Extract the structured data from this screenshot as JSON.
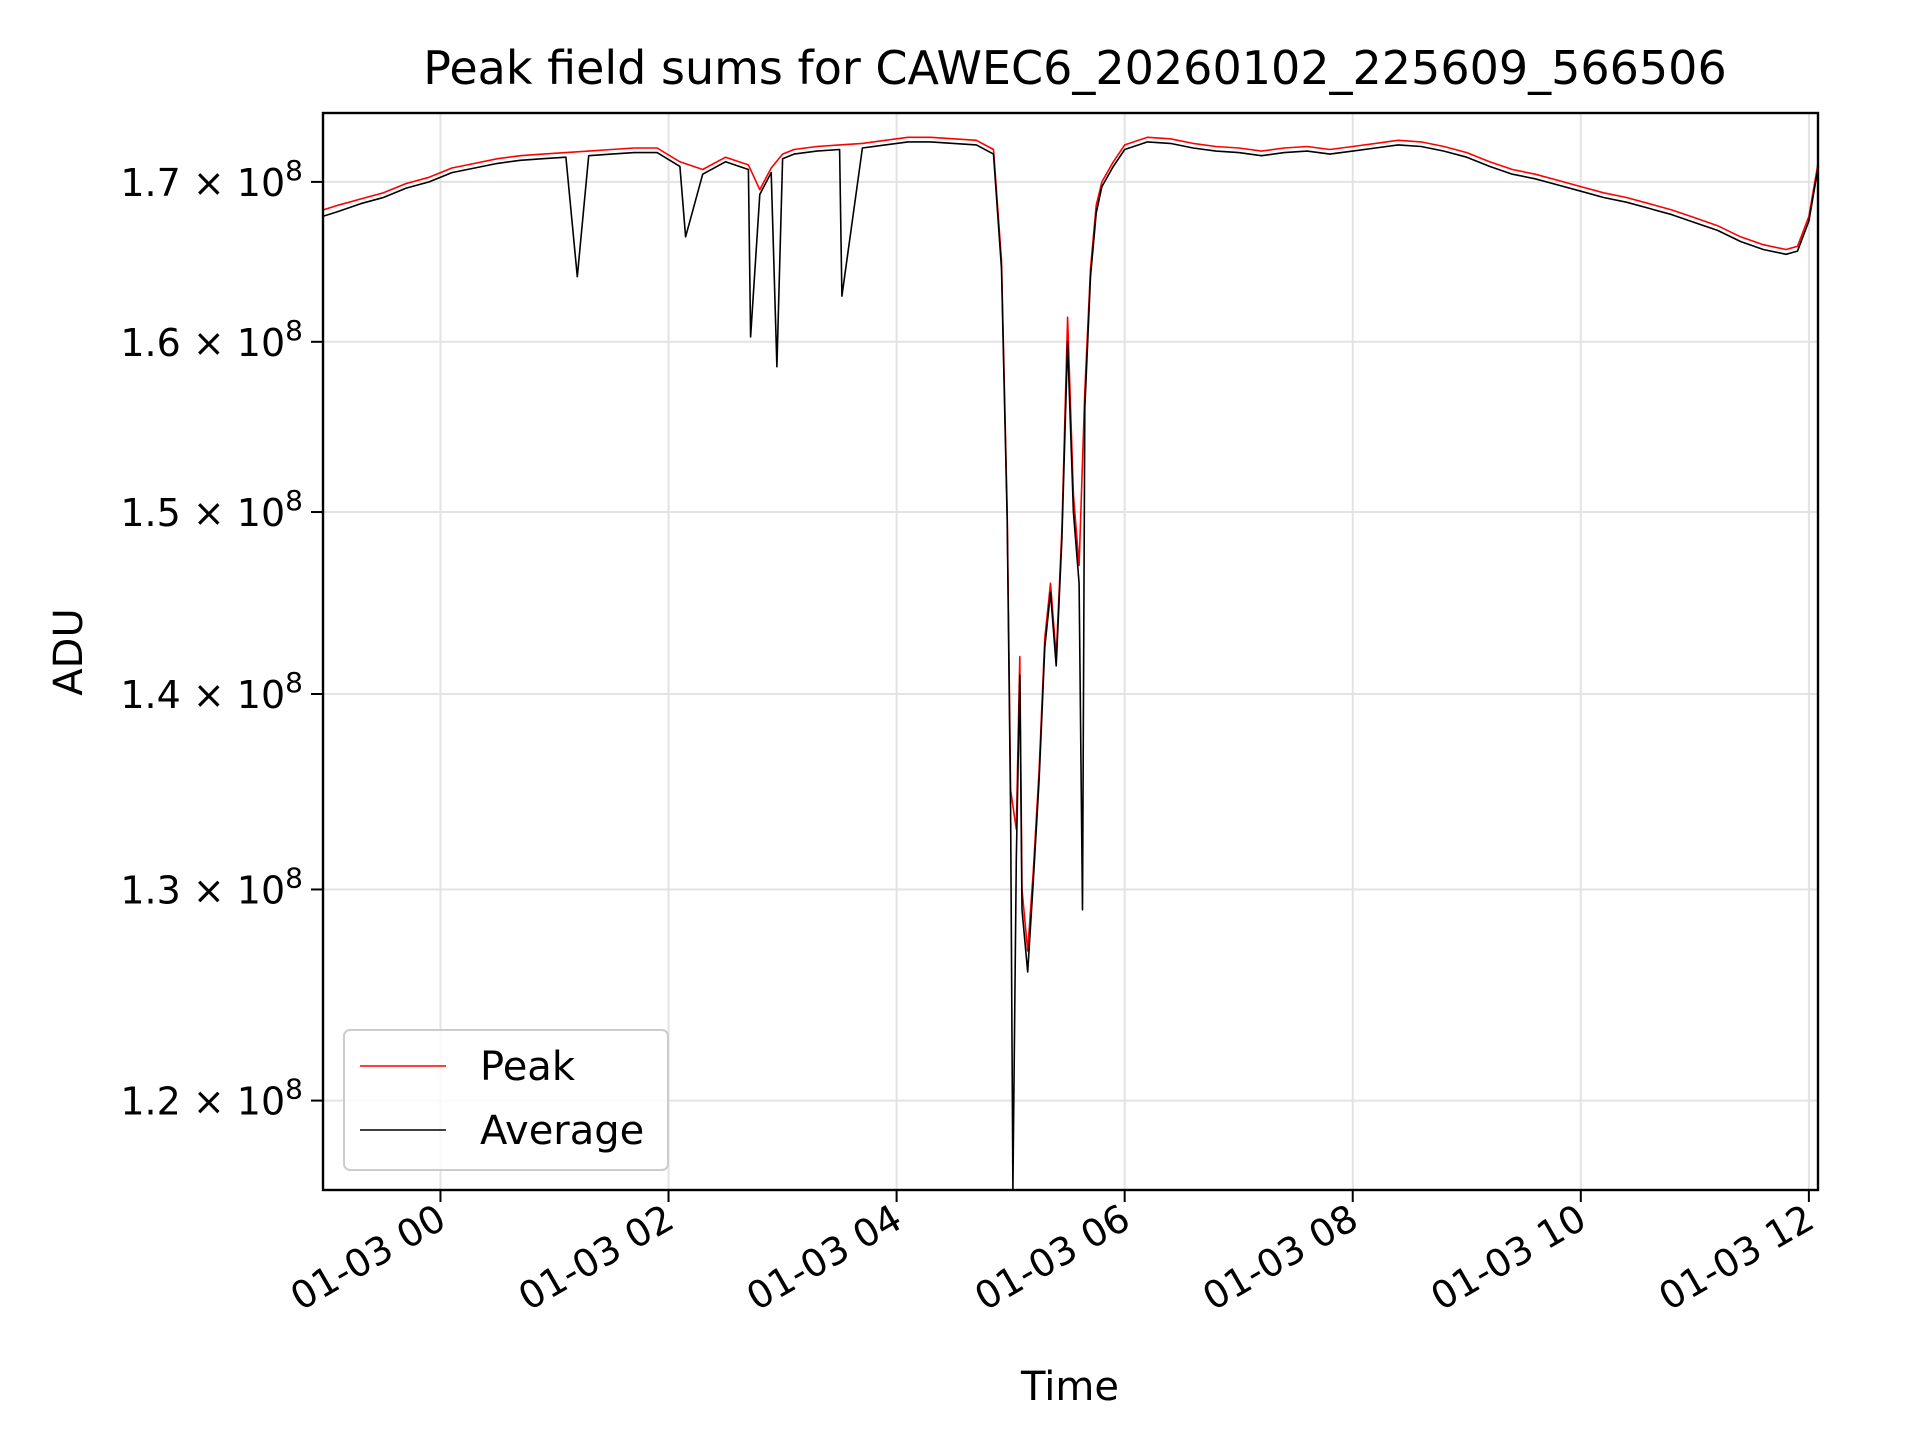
{
  "chart_data": {
    "type": "line",
    "title": "Peak field sums for CAWEC6_20260102_225609_566506",
    "xlabel": "Time",
    "ylabel": "ADU",
    "xscale": "time",
    "yscale": "log",
    "x_unit": "hours since 2026-01-03 00:00",
    "xlim": [
      -1.03,
      12.08
    ],
    "ylim": [
      116000000,
      174500000
    ],
    "grid": true,
    "legend": "lower-left",
    "x_ticks": [
      {
        "value": 0,
        "label": "01-03 00"
      },
      {
        "value": 2,
        "label": "01-03 02"
      },
      {
        "value": 4,
        "label": "01-03 04"
      },
      {
        "value": 6,
        "label": "01-03 06"
      },
      {
        "value": 8,
        "label": "01-03 08"
      },
      {
        "value": 10,
        "label": "01-03 10"
      },
      {
        "value": 12,
        "label": "01-03 12"
      }
    ],
    "y_ticks": [
      {
        "value": 120000000,
        "mantissa": "1.2",
        "base": "10",
        "exponent": "8"
      },
      {
        "value": 130000000,
        "mantissa": "1.3",
        "base": "10",
        "exponent": "8"
      },
      {
        "value": 140000000,
        "mantissa": "1.4",
        "base": "10",
        "exponent": "8"
      },
      {
        "value": 150000000,
        "mantissa": "1.5",
        "base": "10",
        "exponent": "8"
      },
      {
        "value": 160000000,
        "mantissa": "1.6",
        "base": "10",
        "exponent": "8"
      },
      {
        "value": 170000000,
        "mantissa": "1.7",
        "base": "10",
        "exponent": "8"
      }
    ],
    "series": [
      {
        "name": "Peak",
        "color": "#ff0000",
        "x": [
          -1.03,
          -0.9,
          -0.7,
          -0.5,
          -0.3,
          -0.1,
          0.1,
          0.3,
          0.5,
          0.7,
          0.9,
          1.1,
          1.3,
          1.5,
          1.7,
          1.9,
          2.1,
          2.3,
          2.5,
          2.7,
          2.8,
          2.9,
          3.0,
          3.1,
          3.3,
          3.5,
          3.7,
          3.9,
          4.1,
          4.3,
          4.5,
          4.7,
          4.85,
          4.92,
          4.97,
          5.0,
          5.05,
          5.08,
          5.1,
          5.15,
          5.2,
          5.25,
          5.3,
          5.35,
          5.4,
          5.45,
          5.5,
          5.55,
          5.6,
          5.65,
          5.7,
          5.75,
          5.8,
          5.9,
          6.0,
          6.2,
          6.4,
          6.6,
          6.8,
          7.0,
          7.2,
          7.4,
          7.6,
          7.8,
          8.0,
          8.2,
          8.4,
          8.6,
          8.8,
          9.0,
          9.2,
          9.4,
          9.6,
          9.8,
          10.0,
          10.2,
          10.4,
          10.6,
          10.8,
          11.0,
          11.2,
          11.4,
          11.6,
          11.8,
          11.9,
          12.0,
          12.08
        ],
        "values": [
          168200000,
          168500000,
          168900000,
          169300000,
          169900000,
          170300000,
          170900000,
          171200000,
          171500000,
          171700000,
          171800000,
          171900000,
          172000000,
          172100000,
          172200000,
          172200000,
          171300000,
          170800000,
          171600000,
          171100000,
          169500000,
          170900000,
          171800000,
          172100000,
          172300000,
          172400000,
          172500000,
          172700000,
          172900000,
          172900000,
          172800000,
          172700000,
          172100000,
          165000000,
          150000000,
          135000000,
          133000000,
          142000000,
          130000000,
          127000000,
          131000000,
          136000000,
          143000000,
          146000000,
          142000000,
          149000000,
          161500000,
          151000000,
          147000000,
          157000000,
          164500000,
          168500000,
          170000000,
          171300000,
          172400000,
          172900000,
          172800000,
          172500000,
          172300000,
          172200000,
          172000000,
          172200000,
          172300000,
          172100000,
          172300000,
          172500000,
          172700000,
          172600000,
          172300000,
          171900000,
          171300000,
          170800000,
          170500000,
          170100000,
          169700000,
          169300000,
          169000000,
          168600000,
          168200000,
          167700000,
          167200000,
          166500000,
          166000000,
          165700000,
          165900000,
          167800000,
          171200000
        ]
      },
      {
        "name": "Average",
        "color": "#000000",
        "x": [
          -1.03,
          -0.9,
          -0.7,
          -0.5,
          -0.3,
          -0.1,
          0.1,
          0.3,
          0.5,
          0.7,
          0.9,
          1.1,
          1.2,
          1.3,
          1.5,
          1.7,
          1.9,
          2.1,
          2.15,
          2.3,
          2.5,
          2.7,
          2.72,
          2.8,
          2.9,
          2.95,
          3.0,
          3.1,
          3.3,
          3.5,
          3.52,
          3.7,
          3.9,
          4.1,
          4.3,
          4.5,
          4.7,
          4.85,
          4.92,
          4.97,
          5.0,
          5.02,
          5.05,
          5.08,
          5.1,
          5.15,
          5.2,
          5.25,
          5.3,
          5.35,
          5.4,
          5.45,
          5.5,
          5.55,
          5.6,
          5.63,
          5.65,
          5.7,
          5.75,
          5.8,
          5.9,
          6.0,
          6.2,
          6.4,
          6.6,
          6.8,
          7.0,
          7.2,
          7.4,
          7.6,
          7.8,
          8.0,
          8.2,
          8.4,
          8.6,
          8.8,
          9.0,
          9.2,
          9.4,
          9.6,
          9.8,
          10.0,
          10.2,
          10.4,
          10.6,
          10.8,
          11.0,
          11.2,
          11.4,
          11.6,
          11.8,
          11.9,
          12.0,
          12.08
        ],
        "values": [
          167800000,
          168100000,
          168600000,
          169000000,
          169600000,
          170000000,
          170600000,
          170900000,
          171200000,
          171400000,
          171500000,
          171600000,
          164000000,
          171700000,
          171800000,
          171900000,
          171900000,
          171000000,
          166500000,
          170500000,
          171300000,
          170800000,
          160300000,
          169200000,
          170600000,
          158500000,
          171500000,
          171800000,
          172000000,
          172100000,
          162800000,
          172200000,
          172400000,
          172600000,
          172600000,
          172500000,
          172400000,
          171800000,
          164500000,
          149500000,
          134000000,
          116000000,
          131500000,
          141000000,
          129000000,
          126000000,
          130500000,
          135500000,
          142500000,
          145500000,
          141500000,
          148500000,
          160000000,
          150000000,
          146000000,
          129000000,
          156000000,
          164000000,
          168000000,
          169700000,
          171000000,
          172100000,
          172600000,
          172500000,
          172200000,
          172000000,
          171900000,
          171700000,
          171900000,
          172000000,
          171800000,
          172000000,
          172200000,
          172400000,
          172300000,
          172000000,
          171600000,
          171000000,
          170500000,
          170200000,
          169800000,
          169400000,
          169000000,
          168700000,
          168300000,
          167900000,
          167400000,
          166900000,
          166200000,
          165700000,
          165400000,
          165600000,
          167500000,
          170900000
        ]
      }
    ]
  }
}
